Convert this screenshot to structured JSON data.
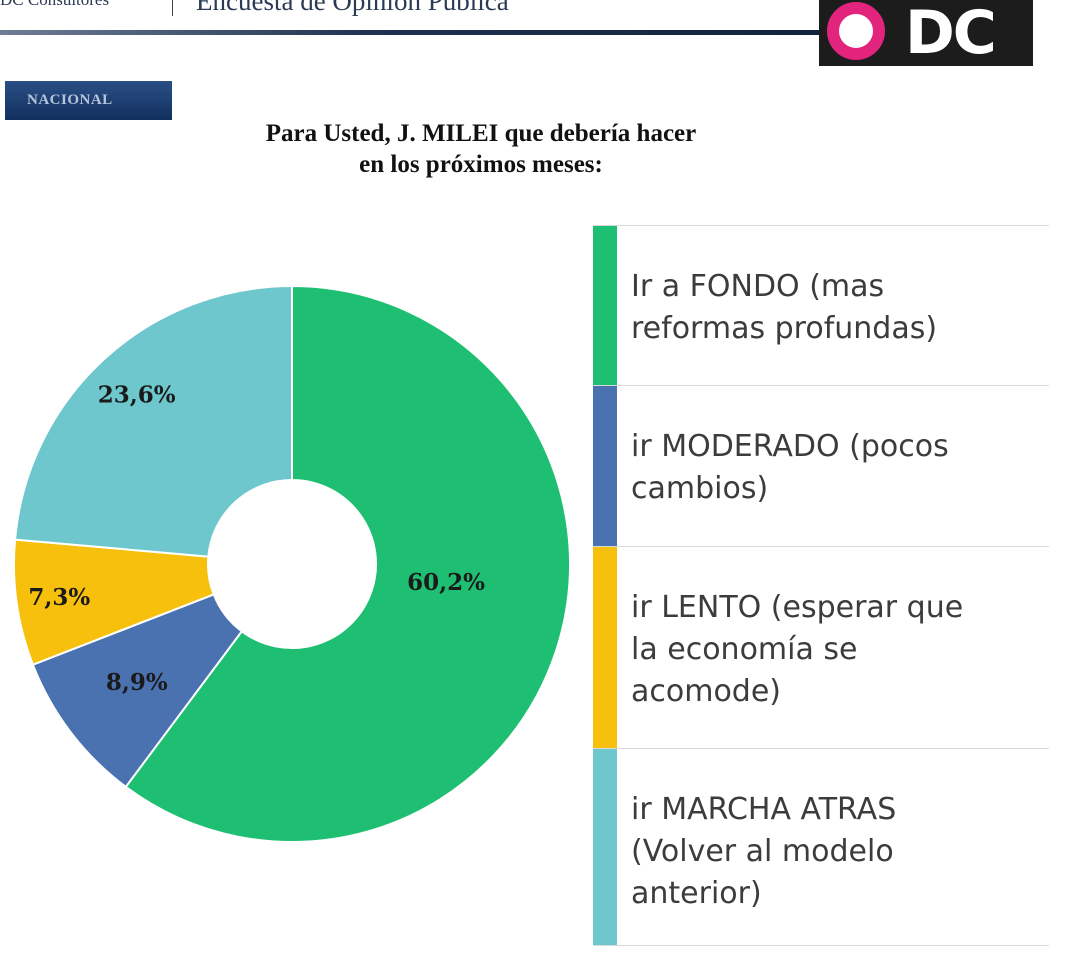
{
  "header": {
    "brand": "DC Consultores",
    "survey": "Encuesta de Opinión Pública",
    "logo_text": "DC",
    "tag": "NACIONAL"
  },
  "title_lines": [
    "Para Usted, J. MILEI que debería hacer",
    "en los próximos meses:"
  ],
  "colors": {
    "green": "#1fbf73",
    "blue": "#4a72b0",
    "yellow": "#f6c00c",
    "teal": "#6dc7cd",
    "logo_pink": "#e2247d"
  },
  "chart_data": {
    "type": "pie",
    "donut": true,
    "title": "Para Usted, J. MILEI que debería hacer en los próximos meses:",
    "categories": [
      "Ir a FONDO (mas reformas profundas)",
      "ir MODERADO (pocos cambios)",
      "ir LENTO (esperar que la economía se acomode)",
      "ir MARCHA ATRAS (Volver al modelo anterior)"
    ],
    "values": [
      60.2,
      8.9,
      7.3,
      23.6
    ],
    "value_labels": [
      "60,2%",
      "8,9%",
      "7,3%",
      "23,6%"
    ],
    "colors": [
      "#1fbf73",
      "#4a72b0",
      "#f6c00c",
      "#6dc7cd"
    ],
    "legend_position": "right"
  },
  "legend": [
    {
      "lines": [
        "Ir a FONDO (mas",
        "reformas profundas)"
      ],
      "color": "#1fbf73"
    },
    {
      "lines": [
        "ir MODERADO (pocos",
        "cambios)"
      ],
      "color": "#4a72b0"
    },
    {
      "lines": [
        "ir LENTO (esperar que",
        "la economía se",
        "acomode)"
      ],
      "color": "#f6c00c"
    },
    {
      "lines": [
        "ir MARCHA ATRAS",
        "(Volver al modelo",
        "anterior)"
      ],
      "color": "#6dc7cd"
    }
  ]
}
